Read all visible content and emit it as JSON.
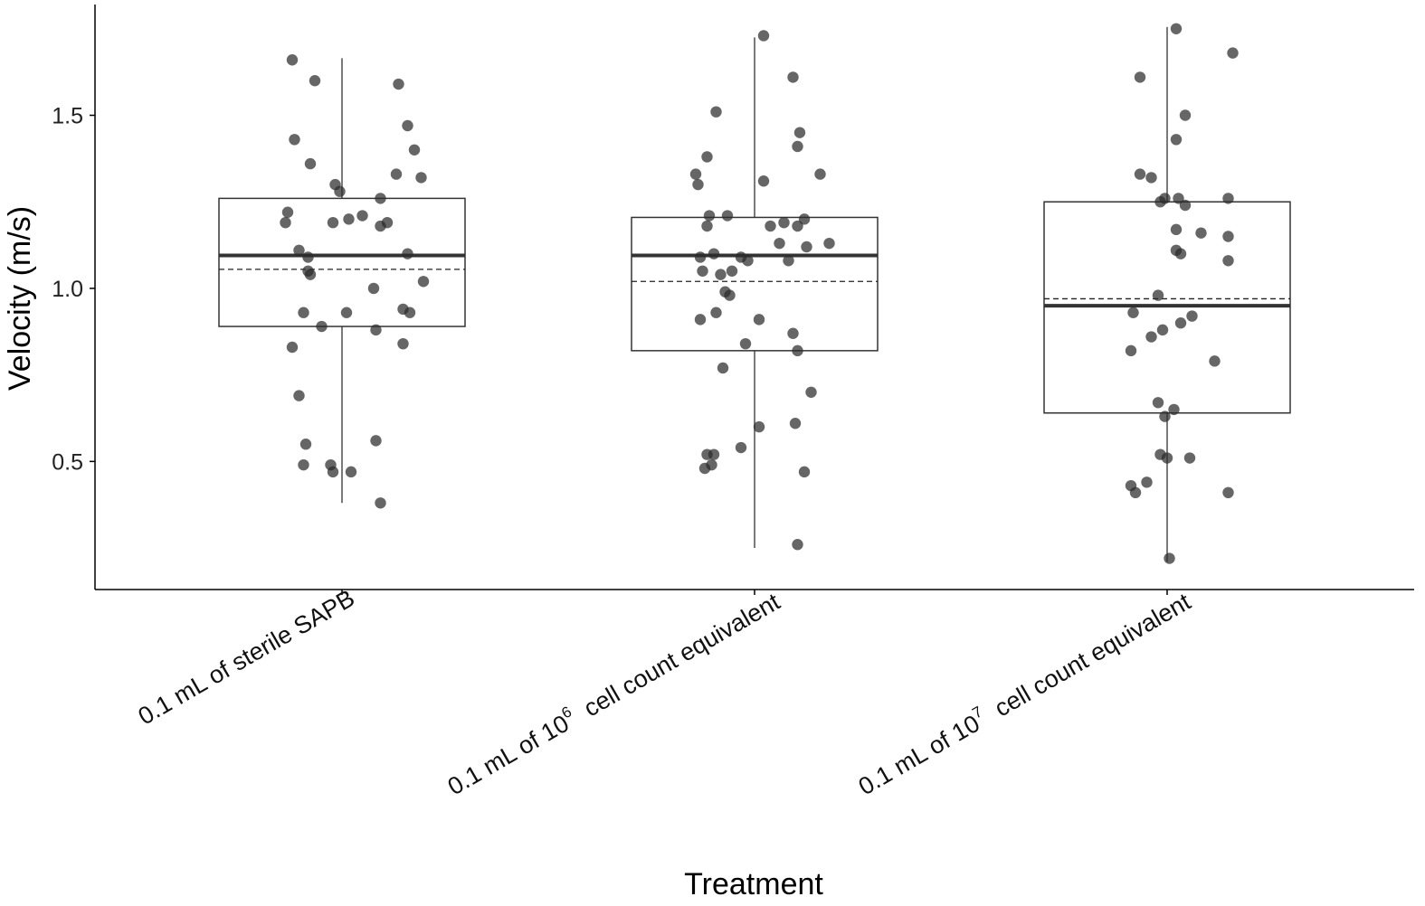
{
  "chart_data": {
    "type": "box",
    "xlabel": "Treatment",
    "ylabel": "Velocity (m/s)",
    "ylim": [
      0.13,
      1.82
    ],
    "yticks": [
      0.5,
      1.0,
      1.5
    ],
    "ytick_labels": [
      "0.5",
      "1.0",
      "1.5"
    ],
    "grid": false,
    "legend": "none",
    "categories": [
      {
        "label_pre": "0.1 mL of sterile SAPB",
        "label_sup": "",
        "label_post": ""
      },
      {
        "label_pre": "0.1 mL of 10",
        "label_sup": "6",
        "label_post": " cell count equivalent"
      },
      {
        "label_pre": "0.1 mL of 10",
        "label_sup": "7",
        "label_post": " cell count equivalent"
      }
    ],
    "boxes": [
      {
        "whisker_low": 0.38,
        "q1": 0.89,
        "median": 1.095,
        "mean": 1.055,
        "q3": 1.26,
        "whisker_high": 1.665
      },
      {
        "whisker_low": 0.25,
        "q1": 0.82,
        "median": 1.095,
        "mean": 1.02,
        "q3": 1.205,
        "whisker_high": 1.725
      },
      {
        "whisker_low": 0.21,
        "q1": 0.64,
        "median": 0.95,
        "mean": 0.97,
        "q3": 1.25,
        "whisker_high": 1.755
      }
    ],
    "points": [
      [
        [
          -0.22,
          1.66
        ],
        [
          -0.12,
          1.6
        ],
        [
          -0.21,
          1.43
        ],
        [
          0.25,
          1.59
        ],
        [
          0.29,
          1.47
        ],
        [
          -0.14,
          1.36
        ],
        [
          -0.03,
          1.3
        ],
        [
          0.32,
          1.4
        ],
        [
          -0.01,
          1.28
        ],
        [
          0.24,
          1.33
        ],
        [
          0.35,
          1.32
        ],
        [
          0.17,
          1.26
        ],
        [
          -0.24,
          1.22
        ],
        [
          -0.25,
          1.19
        ],
        [
          -0.04,
          1.19
        ],
        [
          0.03,
          1.2
        ],
        [
          0.09,
          1.21
        ],
        [
          0.17,
          1.18
        ],
        [
          0.2,
          1.19
        ],
        [
          -0.19,
          1.11
        ],
        [
          0.29,
          1.1
        ],
        [
          -0.15,
          1.09
        ],
        [
          -0.15,
          1.05
        ],
        [
          -0.14,
          1.04
        ],
        [
          0.14,
          1.0
        ],
        [
          0.27,
          0.94
        ],
        [
          0.36,
          1.02
        ],
        [
          0.3,
          0.93
        ],
        [
          -0.17,
          0.93
        ],
        [
          0.02,
          0.93
        ],
        [
          -0.09,
          0.89
        ],
        [
          0.15,
          0.88
        ],
        [
          0.27,
          0.84
        ],
        [
          -0.22,
          0.83
        ],
        [
          -0.19,
          0.69
        ],
        [
          -0.16,
          0.55
        ],
        [
          0.15,
          0.56
        ],
        [
          -0.17,
          0.49
        ],
        [
          -0.05,
          0.49
        ],
        [
          -0.04,
          0.47
        ],
        [
          0.04,
          0.47
        ],
        [
          0.17,
          0.38
        ]
      ],
      [
        [
          0.04,
          1.73
        ],
        [
          0.17,
          1.61
        ],
        [
          -0.17,
          1.51
        ],
        [
          0.2,
          1.45
        ],
        [
          0.19,
          1.41
        ],
        [
          -0.21,
          1.38
        ],
        [
          -0.26,
          1.33
        ],
        [
          0.29,
          1.33
        ],
        [
          -0.25,
          1.3
        ],
        [
          0.04,
          1.31
        ],
        [
          -0.2,
          1.21
        ],
        [
          -0.12,
          1.21
        ],
        [
          -0.21,
          1.18
        ],
        [
          0.13,
          1.19
        ],
        [
          0.19,
          1.18
        ],
        [
          0.22,
          1.2
        ],
        [
          0.07,
          1.18
        ],
        [
          0.23,
          1.12
        ],
        [
          0.33,
          1.13
        ],
        [
          0.11,
          1.13
        ],
        [
          0.15,
          1.08
        ],
        [
          -0.06,
          1.09
        ],
        [
          -0.18,
          1.1
        ],
        [
          -0.03,
          1.08
        ],
        [
          -0.24,
          1.09
        ],
        [
          -0.23,
          1.05
        ],
        [
          -0.1,
          1.05
        ],
        [
          -0.15,
          1.04
        ],
        [
          -0.13,
          0.99
        ],
        [
          -0.11,
          0.98
        ],
        [
          -0.17,
          0.93
        ],
        [
          -0.24,
          0.91
        ],
        [
          0.02,
          0.91
        ],
        [
          0.17,
          0.87
        ],
        [
          0.19,
          0.82
        ],
        [
          -0.04,
          0.84
        ],
        [
          -0.14,
          0.77
        ],
        [
          0.25,
          0.7
        ],
        [
          0.02,
          0.6
        ],
        [
          0.18,
          0.61
        ],
        [
          -0.21,
          0.52
        ],
        [
          -0.18,
          0.52
        ],
        [
          -0.06,
          0.54
        ],
        [
          -0.19,
          0.49
        ],
        [
          -0.22,
          0.48
        ],
        [
          0.22,
          0.47
        ],
        [
          0.19,
          0.26
        ]
      ],
      [
        [
          0.04,
          1.75
        ],
        [
          0.29,
          1.68
        ],
        [
          -0.12,
          1.61
        ],
        [
          0.08,
          1.5
        ],
        [
          0.04,
          1.43
        ],
        [
          -0.12,
          1.33
        ],
        [
          -0.07,
          1.32
        ],
        [
          0.05,
          1.26
        ],
        [
          0.27,
          1.26
        ],
        [
          -0.03,
          1.25
        ],
        [
          -0.01,
          1.26
        ],
        [
          0.08,
          1.24
        ],
        [
          0.04,
          1.17
        ],
        [
          0.15,
          1.16
        ],
        [
          0.27,
          1.15
        ],
        [
          0.04,
          1.11
        ],
        [
          0.06,
          1.1
        ],
        [
          0.27,
          1.08
        ],
        [
          -0.04,
          0.98
        ],
        [
          -0.15,
          0.93
        ],
        [
          0.06,
          0.9
        ],
        [
          0.11,
          0.92
        ],
        [
          -0.02,
          0.88
        ],
        [
          -0.07,
          0.86
        ],
        [
          -0.16,
          0.82
        ],
        [
          0.21,
          0.79
        ],
        [
          -0.04,
          0.67
        ],
        [
          0.03,
          0.65
        ],
        [
          -0.01,
          0.63
        ],
        [
          -0.03,
          0.52
        ],
        [
          0.0,
          0.51
        ],
        [
          0.1,
          0.51
        ],
        [
          -0.09,
          0.44
        ],
        [
          -0.16,
          0.43
        ],
        [
          -0.14,
          0.41
        ],
        [
          0.27,
          0.41
        ],
        [
          0.01,
          0.22
        ]
      ]
    ]
  }
}
